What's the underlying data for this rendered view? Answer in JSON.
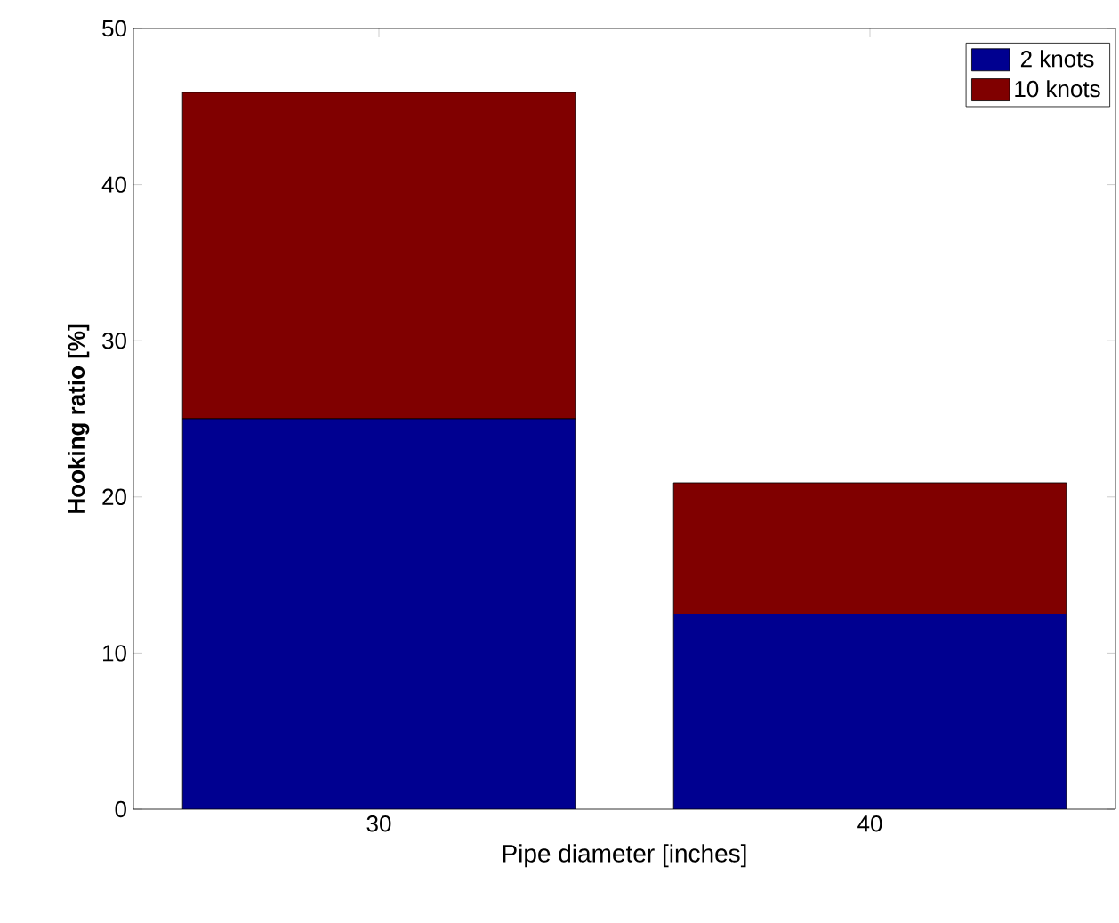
{
  "chart_data": {
    "type": "bar",
    "stacked": true,
    "xlabel": "Pipe diameter [inches]",
    "ylabel": "Hooking ratio [%]",
    "categories": [
      "30",
      "40"
    ],
    "series": [
      {
        "name": "2 knots",
        "color": "#000090",
        "values": [
          25,
          12.5
        ]
      },
      {
        "name": "10 knots",
        "color": "#800000",
        "values": [
          20.9,
          8.4
        ]
      }
    ],
    "ylim": [
      0,
      50
    ],
    "yticks": [
      0,
      10,
      20,
      30,
      40,
      50
    ],
    "legend": "top right"
  }
}
